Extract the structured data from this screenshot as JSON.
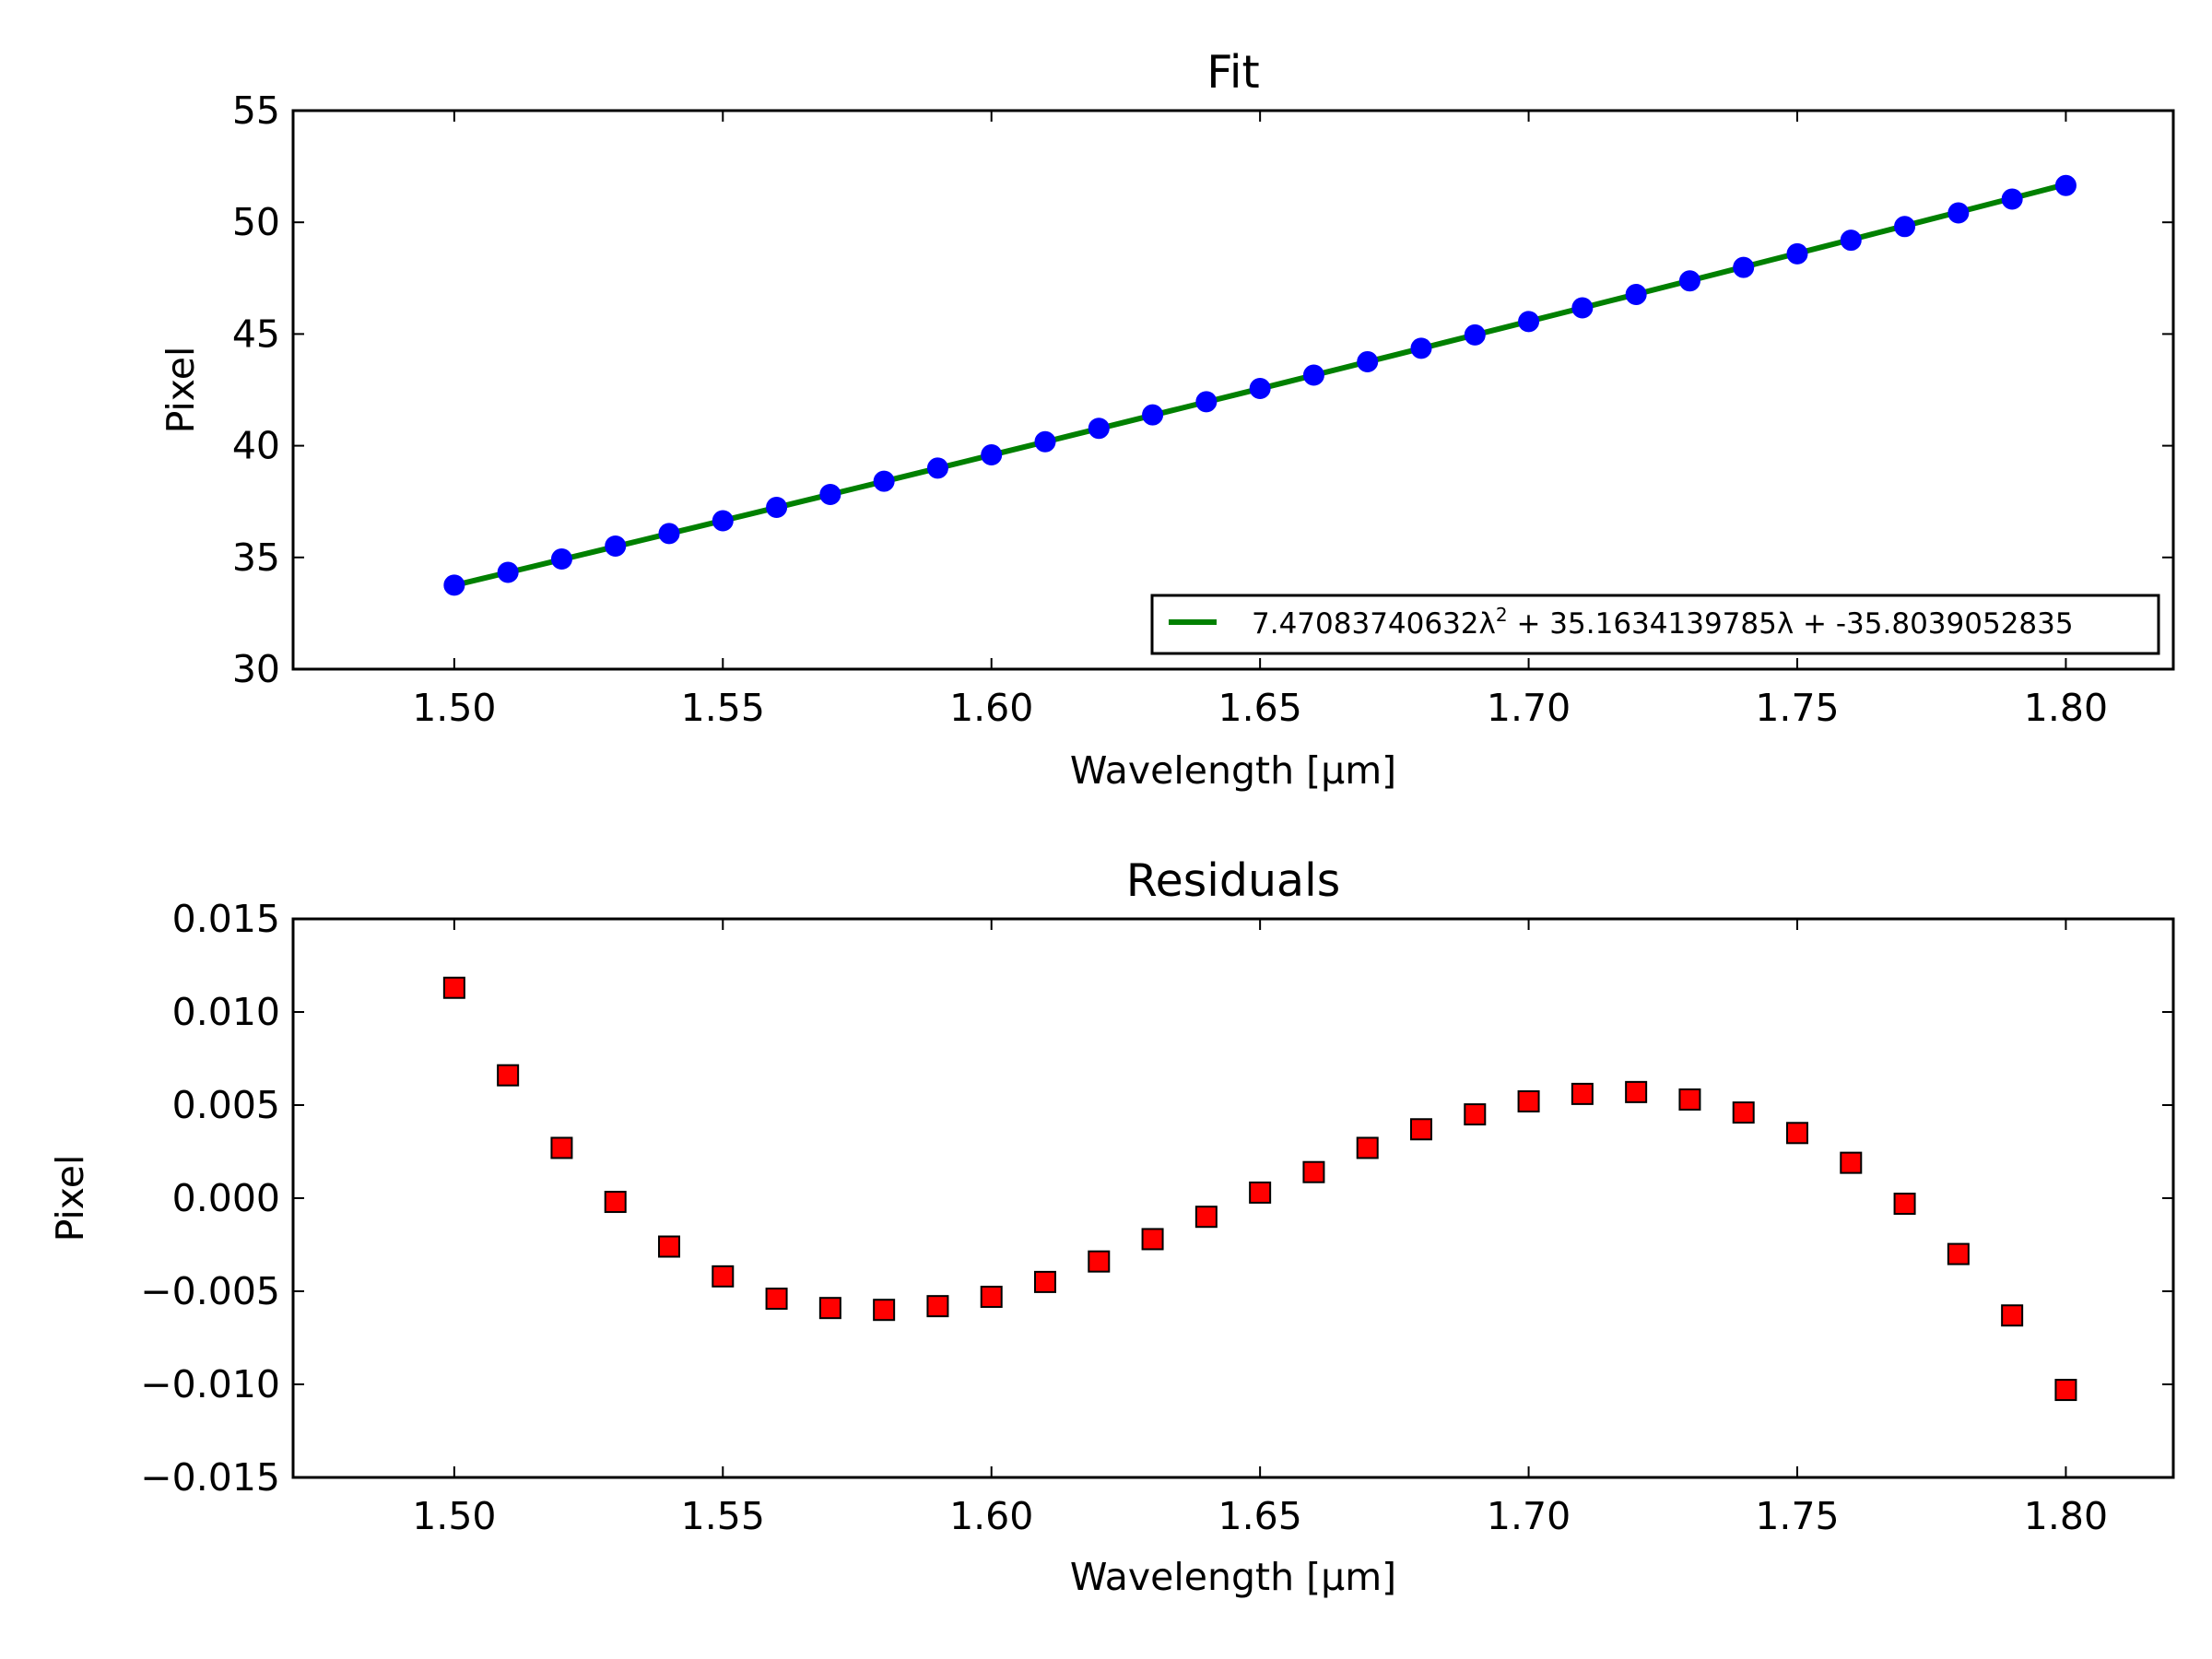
{
  "colors": {
    "fit_line": "#008000",
    "fit_points": "#0000ff",
    "residual_points": "#ff0000",
    "axes": "#000000"
  },
  "chart_data": [
    {
      "type": "line",
      "title": "Fit",
      "xlabel": "Wavelength [μm]",
      "ylabel": "Pixel",
      "xlim": [
        1.47,
        1.82
      ],
      "ylim": [
        30,
        55
      ],
      "xticks": [
        "1.50",
        "1.55",
        "1.60",
        "1.65",
        "1.70",
        "1.75",
        "1.80"
      ],
      "yticks": [
        "30",
        "35",
        "40",
        "45",
        "50",
        "55"
      ],
      "grid": false,
      "legend_position": "lower-right",
      "legend": {
        "label": "7.47083740632λ² + 35.1634139785λ + -35.8039052835",
        "parts": [
          "7.47083740632λ",
          "2",
          " + 35.1634139785λ + -35.8039052835"
        ]
      },
      "x": [
        1.5,
        1.51,
        1.52,
        1.53,
        1.54,
        1.55,
        1.56,
        1.57,
        1.58,
        1.59,
        1.6,
        1.61,
        1.62,
        1.63,
        1.64,
        1.65,
        1.66,
        1.67,
        1.68,
        1.69,
        1.7,
        1.71,
        1.72,
        1.73,
        1.74,
        1.75,
        1.76,
        1.77,
        1.78,
        1.79,
        1.8
      ],
      "series": [
        {
          "name": "data",
          "marker": "circle",
          "values": [
            33.76,
            34.33,
            34.93,
            35.51,
            36.07,
            36.64,
            37.24,
            37.82,
            38.41,
            39.0,
            39.59,
            40.18,
            40.78,
            41.38,
            41.97,
            42.56,
            43.16,
            43.76,
            44.36,
            44.96,
            45.56,
            46.17,
            46.77,
            47.38,
            47.98,
            48.59,
            49.2,
            49.81,
            50.42,
            51.04,
            51.65
          ]
        },
        {
          "name": "7.47083740632λ² + 35.1634139785λ + -35.8039052835",
          "style": "line",
          "coefficients": [
            7.47083740632,
            35.1634139785,
            -35.8039052835
          ]
        }
      ]
    },
    {
      "type": "scatter",
      "title": "Residuals",
      "xlabel": "Wavelength [μm]",
      "ylabel": "Pixel",
      "xlim": [
        1.47,
        1.82
      ],
      "ylim": [
        -0.015,
        0.015
      ],
      "xticks": [
        "1.50",
        "1.55",
        "1.60",
        "1.65",
        "1.70",
        "1.75",
        "1.80"
      ],
      "yticks": [
        "0.015",
        "0.010",
        "0.005",
        "0.000",
        "−0.005",
        "−0.010",
        "−0.015"
      ],
      "grid": false,
      "x": [
        1.5,
        1.51,
        1.52,
        1.53,
        1.54,
        1.55,
        1.56,
        1.57,
        1.58,
        1.59,
        1.6,
        1.61,
        1.62,
        1.63,
        1.64,
        1.65,
        1.66,
        1.67,
        1.68,
        1.69,
        1.7,
        1.71,
        1.72,
        1.73,
        1.74,
        1.75,
        1.76,
        1.77,
        1.78,
        1.79,
        1.8
      ],
      "series": [
        {
          "name": "residuals",
          "marker": "square",
          "values": [
            0.0113,
            0.0066,
            0.0027,
            -0.0002,
            -0.0026,
            -0.0042,
            -0.0054,
            -0.0059,
            -0.006,
            -0.0058,
            -0.0053,
            -0.0045,
            -0.0034,
            -0.0022,
            -0.001,
            0.0003,
            0.0014,
            0.0027,
            0.0037,
            0.0045,
            0.0052,
            0.0056,
            0.0057,
            0.0053,
            0.0046,
            0.0035,
            0.0019,
            -0.0003,
            -0.003,
            -0.0063,
            -0.0103
          ]
        }
      ]
    }
  ]
}
